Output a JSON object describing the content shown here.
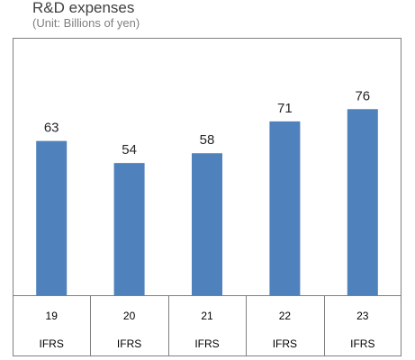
{
  "chart_data": {
    "type": "bar",
    "title": "R&D expenses",
    "subtitle": "(Unit: Billions of yen)",
    "categories": [
      "19",
      "20",
      "21",
      "22",
      "23"
    ],
    "category_sublabels": [
      "IFRS",
      "IFRS",
      "IFRS",
      "IFRS",
      "IFRS"
    ],
    "values": [
      63,
      54,
      58,
      71,
      76
    ],
    "xlabel": "",
    "ylabel": "",
    "ylim": [
      0,
      100
    ],
    "grid": false,
    "legend": "none",
    "data_labels": true,
    "bar_color": "#4f81bd",
    "border_color": "#7f7f7f"
  }
}
